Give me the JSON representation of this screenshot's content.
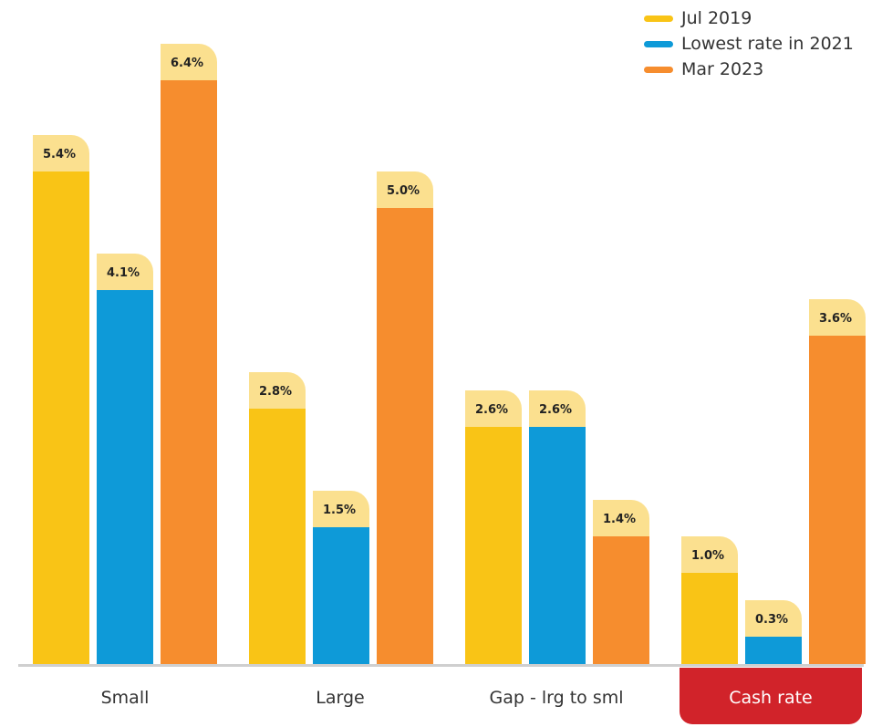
{
  "chart_data": {
    "type": "bar",
    "categories": [
      "Small",
      "Large",
      "Gap - lrg to sml",
      "Cash rate"
    ],
    "highlight_category": "Cash rate",
    "series": [
      {
        "name": "Jul 2019",
        "values": [
          5.4,
          2.8,
          2.6,
          1.0
        ],
        "labels": [
          "5.4%",
          "2.8%",
          "2.6%",
          "1.0%"
        ]
      },
      {
        "name": "Lowest rate in 2021",
        "values": [
          4.1,
          1.5,
          2.6,
          0.3
        ],
        "labels": [
          "4.1%",
          "1.5%",
          "2.6%",
          "0.3%"
        ]
      },
      {
        "name": "Mar 2023",
        "values": [
          6.4,
          5.0,
          1.4,
          3.6
        ],
        "labels": [
          "6.4%",
          "5.0%",
          "1.4%",
          "3.6%"
        ]
      }
    ],
    "title": "",
    "xlabel": "",
    "ylabel": "",
    "ylim": [
      0,
      6.4
    ],
    "grid": false,
    "legend_position": "top-right"
  },
  "colors": {
    "series": [
      "#f9c416",
      "#0e9ad8",
      "#f68d2e"
    ],
    "label_badge": "#fbe08f",
    "baseline": "#cfcfcf",
    "highlight": "#d1232a"
  }
}
